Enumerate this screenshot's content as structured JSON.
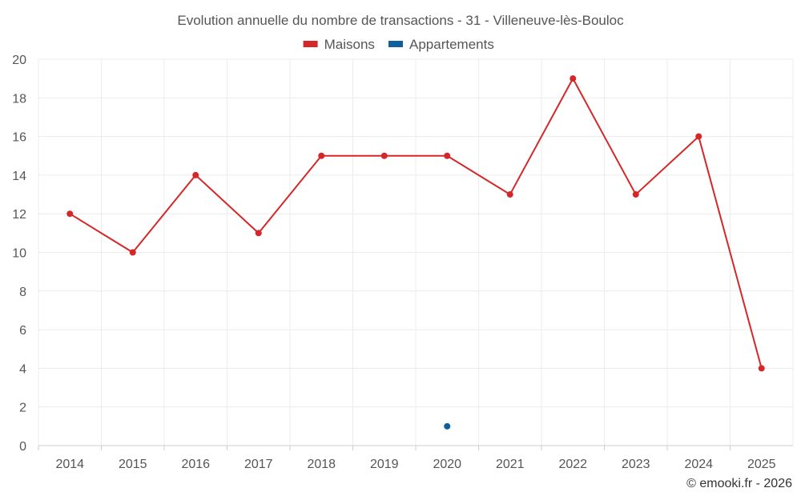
{
  "chart_data": {
    "type": "line",
    "title": "Evolution annuelle du nombre de transactions - 31 - Villeneuve-lès-Bouloc",
    "categories": [
      "2014",
      "2015",
      "2016",
      "2017",
      "2018",
      "2019",
      "2020",
      "2021",
      "2022",
      "2023",
      "2024",
      "2025"
    ],
    "series": [
      {
        "name": "Maisons",
        "color": "#d62728",
        "values": [
          12,
          10,
          14,
          11,
          15,
          15,
          15,
          13,
          19,
          13,
          16,
          4
        ]
      },
      {
        "name": "Appartements",
        "color": "#0f5f9a",
        "values": [
          null,
          null,
          null,
          null,
          null,
          null,
          1,
          null,
          null,
          null,
          null,
          null
        ]
      }
    ],
    "yticks": [
      "0",
      "2",
      "4",
      "6",
      "8",
      "10",
      "12",
      "14",
      "16",
      "18",
      "20"
    ],
    "ylim": [
      0,
      20
    ],
    "xlabel": "",
    "ylabel": "",
    "grid": true,
    "legend": "top-center"
  },
  "credit": "© emooki.fr - 2026"
}
